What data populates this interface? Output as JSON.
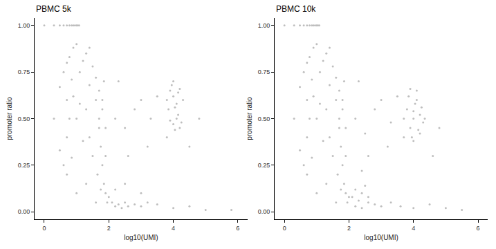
{
  "chart_data": [
    {
      "type": "scatter",
      "title": "PBMC 5k",
      "x_label": "log10(UMI)",
      "y_label": "promoter ratio",
      "color": "#bebebe",
      "marker": "circle",
      "grid": false,
      "xlim": [
        -0.3,
        6.3
      ],
      "xticks": [
        0,
        2,
        4,
        6
      ],
      "ylim": [
        -0.04,
        1.04
      ],
      "yticks": [
        {
          "value": 0,
          "label": "0.00"
        },
        {
          "value": 0.25,
          "label": "0.25"
        },
        {
          "value": 0.5,
          "label": "0.50"
        },
        {
          "value": 0.75,
          "label": "0.75"
        },
        {
          "value": 1,
          "label": "1.00"
        }
      ],
      "x": [
        0,
        0.3,
        0.48,
        0.6,
        0.7,
        0.78,
        0.85,
        0.9,
        0.95,
        1.0,
        1.04,
        1.08,
        0.3,
        0.48,
        0.48,
        0.6,
        0.6,
        0.7,
        0.7,
        0.7,
        0.7,
        0.78,
        0.78,
        0.85,
        0.85,
        0.9,
        0.9,
        1.0,
        1.0,
        1.0,
        1.1,
        1.1,
        1.2,
        1.2,
        1.3,
        1.3,
        1.3,
        1.4,
        1.4,
        1.4,
        1.5,
        1.5,
        1.6,
        1.6,
        1.7,
        1.7,
        1.7,
        1.75,
        1.8,
        1.8,
        1.8,
        1.85,
        1.9,
        1.9,
        1.65,
        1.75,
        1.95,
        2.0,
        1.85,
        1.6,
        1.9,
        2.1,
        2.2,
        2.3,
        2.4,
        2.5,
        2.6,
        2.8,
        3.0,
        3.2,
        3.5,
        4.0,
        4.5,
        5.0,
        5.8,
        2.2,
        2.5,
        3.0,
        2.2,
        2.5,
        2.8,
        3.0,
        3.3,
        3.5,
        2.6,
        3.2,
        3.8,
        2.3,
        4.5,
        4.8,
        3.8,
        3.9,
        4.0,
        4.1,
        4.2,
        4.0,
        3.85,
        4.15,
        4.3,
        3.95,
        4.05,
        4.0,
        4.1,
        4.2,
        3.9,
        4.25,
        4.05,
        4.15
      ],
      "values": [
        1,
        1,
        1,
        1,
        1,
        1,
        1,
        1,
        1,
        1,
        1,
        1,
        0.5,
        0.67,
        0.33,
        0.75,
        0.25,
        0.8,
        0.6,
        0.4,
        0.2,
        0.83,
        0.5,
        0.71,
        0.29,
        0.88,
        0.62,
        0.9,
        0.5,
        0.1,
        0.75,
        0.58,
        0.81,
        0.38,
        0.85,
        0.55,
        0.15,
        0.88,
        0.68,
        0.4,
        0.78,
        0.3,
        0.72,
        0.05,
        0.65,
        0.5,
        0.45,
        0.35,
        0.25,
        0.6,
        0.55,
        0.15,
        0.1,
        0.45,
        0.2,
        0.12,
        0.05,
        0.08,
        0.7,
        0.6,
        0.3,
        0.05,
        0.03,
        0.04,
        0.02,
        0.05,
        0.03,
        0.04,
        0.03,
        0.05,
        0.04,
        0.02,
        0.03,
        0.01,
        0.01,
        0.12,
        0.15,
        0.1,
        0.5,
        0.45,
        0.55,
        0.6,
        0.5,
        0.62,
        0.3,
        0.35,
        0.4,
        0.7,
        0.35,
        0.5,
        0.6,
        0.65,
        0.62,
        0.58,
        0.66,
        0.7,
        0.55,
        0.64,
        0.6,
        0.68,
        0.56,
        0.47,
        0.5,
        0.45,
        0.49,
        0.48,
        0.44,
        0.52
      ]
    },
    {
      "type": "scatter",
      "title": "PBMC 10k",
      "x_label": "log10(UMI)",
      "y_label": "promoter ratio",
      "color": "#bebebe",
      "marker": "circle",
      "grid": false,
      "xlim": [
        -0.3,
        6.3
      ],
      "xticks": [
        0,
        2,
        4,
        6
      ],
      "ylim": [
        -0.04,
        1.04
      ],
      "yticks": [
        {
          "value": 0,
          "label": "0.00"
        },
        {
          "value": 0.25,
          "label": "0.25"
        },
        {
          "value": 0.5,
          "label": "0.50"
        },
        {
          "value": 0.75,
          "label": "0.75"
        },
        {
          "value": 1,
          "label": "1.00"
        }
      ],
      "x": [
        0,
        0.3,
        0.48,
        0.6,
        0.7,
        0.78,
        0.85,
        0.9,
        0.95,
        1.0,
        1.04,
        1.08,
        0.3,
        0.48,
        0.48,
        0.6,
        0.6,
        0.7,
        0.7,
        0.7,
        0.7,
        0.78,
        0.78,
        0.85,
        0.85,
        0.9,
        0.9,
        1.0,
        1.0,
        1.0,
        1.1,
        1.1,
        1.2,
        1.2,
        1.3,
        1.3,
        1.3,
        1.4,
        1.4,
        1.4,
        1.5,
        1.5,
        1.6,
        1.6,
        1.7,
        1.7,
        1.7,
        1.75,
        1.8,
        1.8,
        1.8,
        1.85,
        1.9,
        1.9,
        1.65,
        1.75,
        1.95,
        2.0,
        1.85,
        1.6,
        1.9,
        2.1,
        2.2,
        2.3,
        2.4,
        2.5,
        2.6,
        2.2,
        2.4,
        2.6,
        2.8,
        3.0,
        3.3,
        3.6,
        4.0,
        4.5,
        5.0,
        5.5,
        2.2,
        2.5,
        2.8,
        3.0,
        3.3,
        3.5,
        2.6,
        3.2,
        3.7,
        2.3,
        2.4,
        4.6,
        4.8,
        3.7,
        3.8,
        3.9,
        4.0,
        4.1,
        4.2,
        4.3,
        3.85,
        3.95,
        4.05,
        4.15,
        4.25,
        3.9,
        4.0,
        4.1,
        4.2,
        4.0,
        4.35
      ],
      "values": [
        1,
        1,
        1,
        1,
        1,
        1,
        1,
        1,
        1,
        1,
        1,
        1,
        0.5,
        0.67,
        0.33,
        0.75,
        0.25,
        0.8,
        0.6,
        0.4,
        0.2,
        0.83,
        0.5,
        0.71,
        0.29,
        0.88,
        0.62,
        0.9,
        0.5,
        0.1,
        0.75,
        0.58,
        0.81,
        0.38,
        0.85,
        0.55,
        0.15,
        0.88,
        0.68,
        0.4,
        0.78,
        0.3,
        0.72,
        0.05,
        0.65,
        0.5,
        0.45,
        0.35,
        0.25,
        0.6,
        0.55,
        0.15,
        0.1,
        0.45,
        0.2,
        0.12,
        0.05,
        0.08,
        0.7,
        0.6,
        0.3,
        0.08,
        0.12,
        0.06,
        0.1,
        0.14,
        0.05,
        0.03,
        0.02,
        0.08,
        0.04,
        0.03,
        0.05,
        0.03,
        0.02,
        0.04,
        0.02,
        0.01,
        0.5,
        0.42,
        0.55,
        0.6,
        0.48,
        0.62,
        0.3,
        0.35,
        0.4,
        0.7,
        0.22,
        0.3,
        0.45,
        0.5,
        0.55,
        0.45,
        0.5,
        0.6,
        0.52,
        0.48,
        0.62,
        0.4,
        0.58,
        0.44,
        0.56,
        0.66,
        0.38,
        0.65,
        0.42,
        0.54,
        0.5
      ]
    }
  ]
}
